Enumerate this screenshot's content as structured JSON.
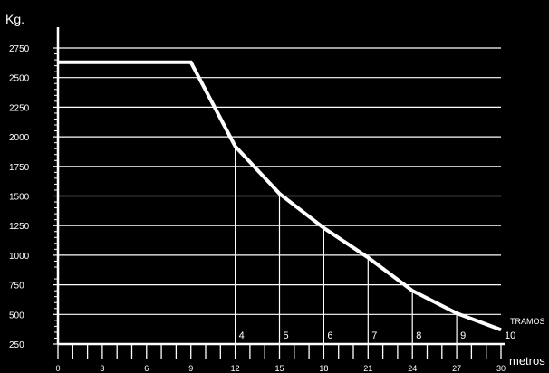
{
  "chart_data": {
    "type": "line",
    "ylabel": "Kg.",
    "xlabel": "metros",
    "xlim": [
      0,
      30
    ],
    "ylim": [
      250,
      2750
    ],
    "yticks": [
      250,
      500,
      750,
      1000,
      1250,
      1500,
      1750,
      2000,
      2250,
      2500,
      2750
    ],
    "xticks": [
      0,
      3,
      6,
      9,
      12,
      15,
      18,
      21,
      24,
      27,
      30
    ],
    "grid": "horizontal",
    "series": [
      {
        "x": [
          0,
          9,
          12,
          15,
          18,
          21,
          24,
          27,
          30
        ],
        "y": [
          2630,
          2630,
          1920,
          1520,
          1230,
          980,
          700,
          510,
          370
        ]
      }
    ],
    "tramos_label": "TRAMOS",
    "tramos": [
      {
        "x": 12,
        "label": "4"
      },
      {
        "x": 15,
        "label": "5"
      },
      {
        "x": 18,
        "label": "6"
      },
      {
        "x": 21,
        "label": "7"
      },
      {
        "x": 24,
        "label": "8"
      },
      {
        "x": 27,
        "label": "9"
      },
      {
        "x": 30,
        "label": "10"
      }
    ],
    "colors": {
      "background": "#000000",
      "foreground": "#ffffff"
    }
  }
}
